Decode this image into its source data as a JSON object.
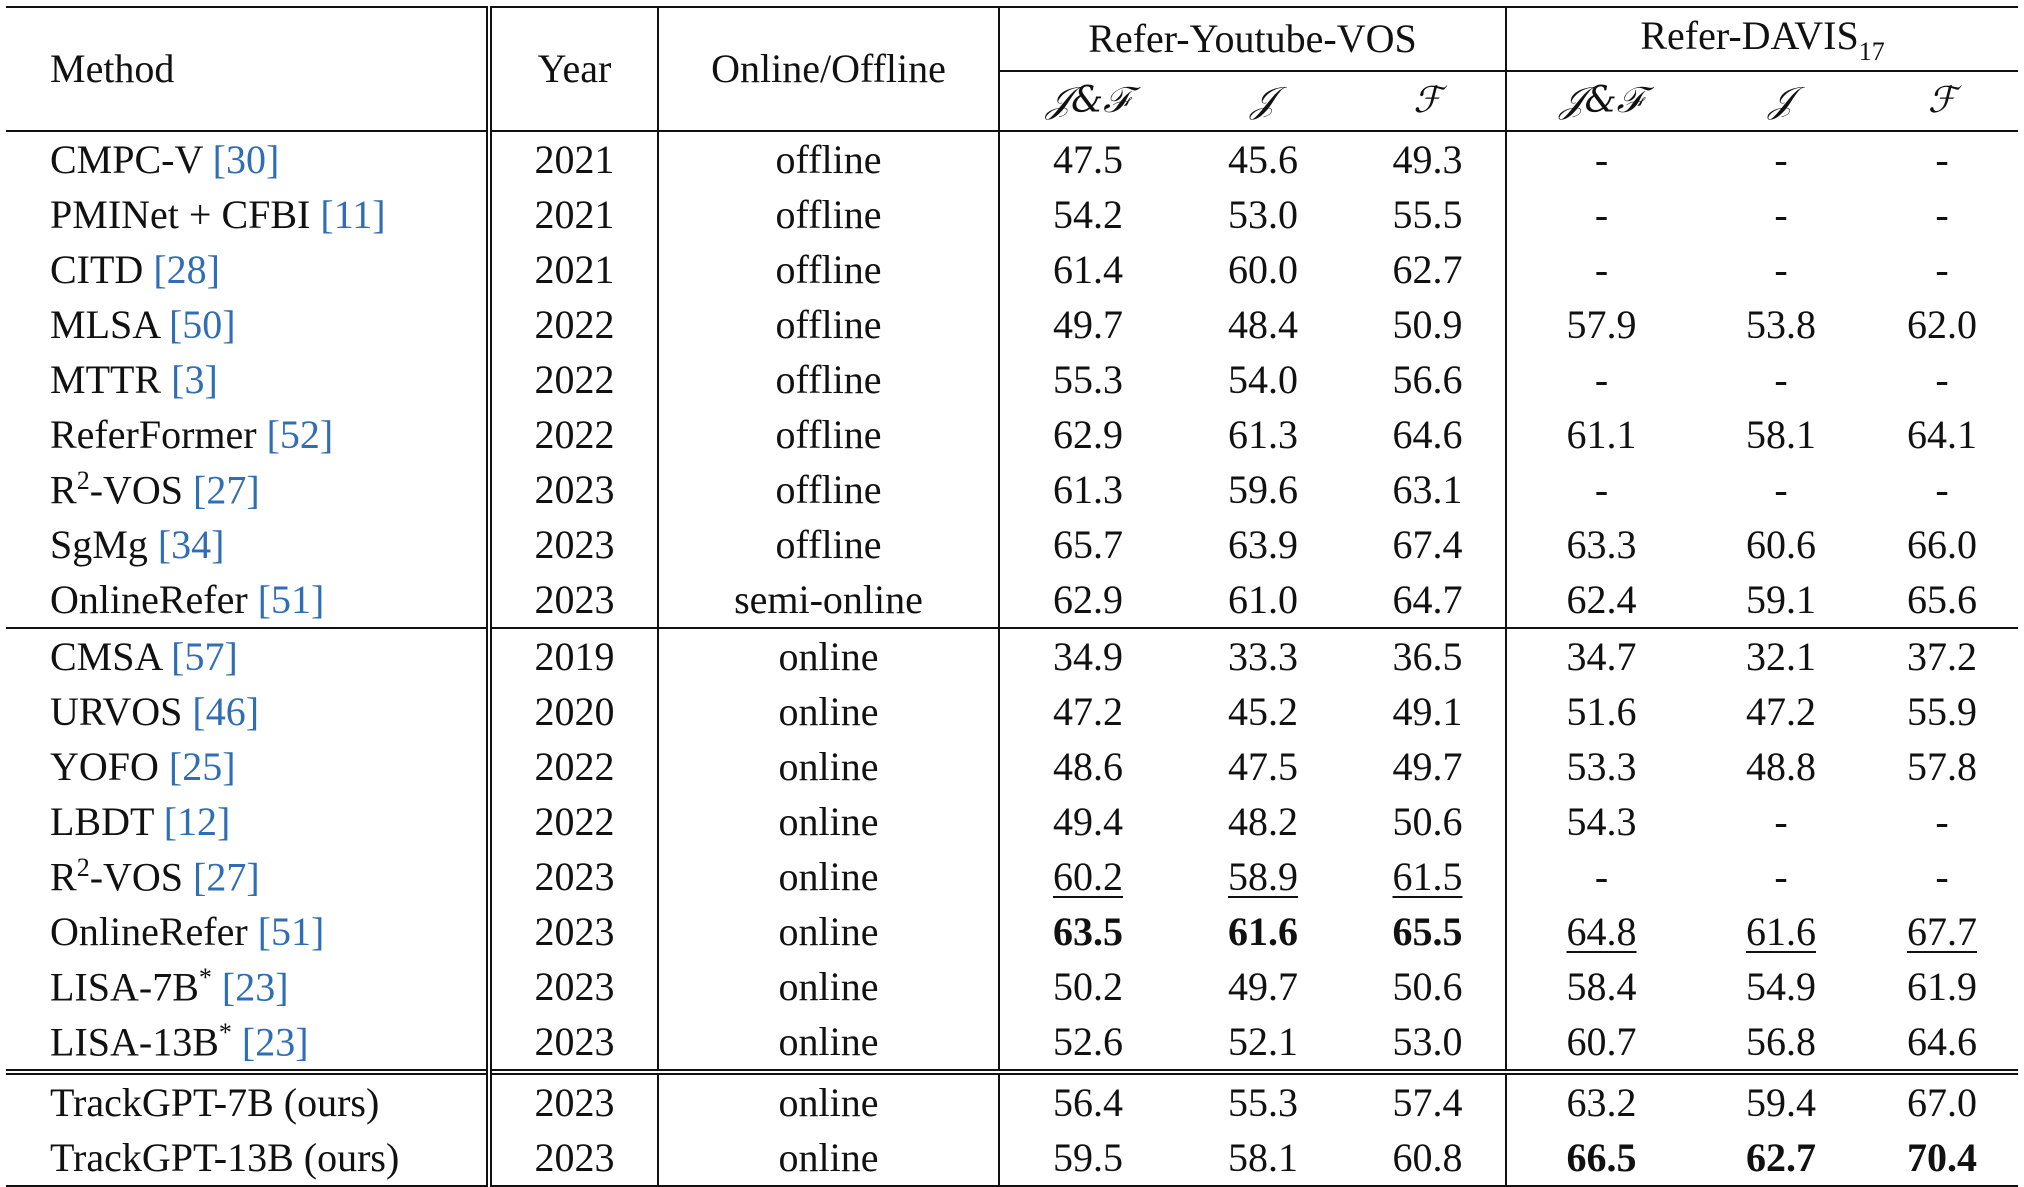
{
  "table": {
    "headers": {
      "method": "Method",
      "year": "Year",
      "mode": "Online/Offline",
      "group1": "Refer-Youtube-VOS",
      "group2_base": "Refer-DAVIS",
      "group2_sub": "17",
      "metric_jf": "𝒥&ℱ",
      "metric_j": "𝒥",
      "metric_f": "ℱ"
    },
    "rows": [
      {
        "name": "CMPC-V",
        "ref": "30",
        "sup": "",
        "year": "2021",
        "mode": "offline",
        "ytvos": [
          "47.5",
          "45.6",
          "49.3"
        ],
        "davis": [
          "-",
          "-",
          "-"
        ]
      },
      {
        "name": "PMINet + CFBI",
        "ref": "11",
        "sup": "",
        "year": "2021",
        "mode": "offline",
        "ytvos": [
          "54.2",
          "53.0",
          "55.5"
        ],
        "davis": [
          "-",
          "-",
          "-"
        ]
      },
      {
        "name": "CITD",
        "ref": "28",
        "sup": "",
        "year": "2021",
        "mode": "offline",
        "ytvos": [
          "61.4",
          "60.0",
          "62.7"
        ],
        "davis": [
          "-",
          "-",
          "-"
        ]
      },
      {
        "name": "MLSA",
        "ref": "50",
        "sup": "",
        "year": "2022",
        "mode": "offline",
        "ytvos": [
          "49.7",
          "48.4",
          "50.9"
        ],
        "davis": [
          "57.9",
          "53.8",
          "62.0"
        ]
      },
      {
        "name": "MTTR",
        "ref": "3",
        "sup": "",
        "year": "2022",
        "mode": "offline",
        "ytvos": [
          "55.3",
          "54.0",
          "56.6"
        ],
        "davis": [
          "-",
          "-",
          "-"
        ]
      },
      {
        "name": "ReferFormer",
        "ref": "52",
        "sup": "",
        "year": "2022",
        "mode": "offline",
        "ytvos": [
          "62.9",
          "61.3",
          "64.6"
        ],
        "davis": [
          "61.1",
          "58.1",
          "64.1"
        ]
      },
      {
        "name": "R",
        "ref": "27",
        "sup": "2",
        "suffix": "-VOS",
        "year": "2023",
        "mode": "offline",
        "ytvos": [
          "61.3",
          "59.6",
          "63.1"
        ],
        "davis": [
          "-",
          "-",
          "-"
        ]
      },
      {
        "name": "SgMg",
        "ref": "34",
        "sup": "",
        "year": "2023",
        "mode": "offline",
        "ytvos": [
          "65.7",
          "63.9",
          "67.4"
        ],
        "davis": [
          "63.3",
          "60.6",
          "66.0"
        ]
      },
      {
        "name": "OnlineRefer",
        "ref": "51",
        "sup": "",
        "year": "2023",
        "mode": "semi-online",
        "ytvos": [
          "62.9",
          "61.0",
          "64.7"
        ],
        "davis": [
          "62.4",
          "59.1",
          "65.6"
        ]
      },
      {
        "name": "CMSA",
        "ref": "57",
        "sup": "",
        "year": "2019",
        "mode": "online",
        "ytvos": [
          "34.9",
          "33.3",
          "36.5"
        ],
        "davis": [
          "34.7",
          "32.1",
          "37.2"
        ]
      },
      {
        "name": "URVOS",
        "ref": "46",
        "sup": "",
        "year": "2020",
        "mode": "online",
        "ytvos": [
          "47.2",
          "45.2",
          "49.1"
        ],
        "davis": [
          "51.6",
          "47.2",
          "55.9"
        ]
      },
      {
        "name": "YOFO",
        "ref": "25",
        "sup": "",
        "year": "2022",
        "mode": "online",
        "ytvos": [
          "48.6",
          "47.5",
          "49.7"
        ],
        "davis": [
          "53.3",
          "48.8",
          "57.8"
        ]
      },
      {
        "name": "LBDT",
        "ref": "12",
        "sup": "",
        "year": "2022",
        "mode": "online",
        "ytvos": [
          "49.4",
          "48.2",
          "50.6"
        ],
        "davis": [
          "54.3",
          "-",
          "-"
        ]
      },
      {
        "name": "R",
        "ref": "27",
        "sup": "2",
        "suffix": "-VOS",
        "year": "2023",
        "mode": "online",
        "ytvos": [
          "60.2",
          "58.9",
          "61.5"
        ],
        "davis": [
          "-",
          "-",
          "-"
        ]
      },
      {
        "name": "OnlineRefer",
        "ref": "51",
        "sup": "",
        "year": "2023",
        "mode": "online",
        "ytvos": [
          "63.5",
          "61.6",
          "65.5"
        ],
        "davis": [
          "64.8",
          "61.6",
          "67.7"
        ]
      },
      {
        "name": "LISA-7B",
        "ref": "23",
        "sup": "*",
        "year": "2023",
        "mode": "online",
        "ytvos": [
          "50.2",
          "49.7",
          "50.6"
        ],
        "davis": [
          "58.4",
          "54.9",
          "61.9"
        ]
      },
      {
        "name": "LISA-13B",
        "ref": "23",
        "sup": "*",
        "year": "2023",
        "mode": "online",
        "ytvos": [
          "52.6",
          "52.1",
          "53.0"
        ],
        "davis": [
          "60.7",
          "56.8",
          "64.6"
        ]
      },
      {
        "name": "TrackGPT-7B (ours)",
        "ref": "",
        "sup": "",
        "year": "2023",
        "mode": "online",
        "ytvos": [
          "56.4",
          "55.3",
          "57.4"
        ],
        "davis": [
          "63.2",
          "59.4",
          "67.0"
        ]
      },
      {
        "name": "TrackGPT-13B (ours)",
        "ref": "",
        "sup": "",
        "year": "2023",
        "mode": "online",
        "ytvos": [
          "59.5",
          "58.1",
          "60.8"
        ],
        "davis": [
          "66.5",
          "62.7",
          "70.4"
        ]
      }
    ],
    "emphasis": {
      "13": {
        "ytvos": [
          "u",
          "u",
          "u"
        ]
      },
      "14": {
        "ytvos": [
          "b",
          "b",
          "b"
        ],
        "davis": [
          "u",
          "u",
          "u"
        ]
      },
      "18": {
        "davis": [
          "b",
          "b",
          "b"
        ]
      }
    }
  }
}
